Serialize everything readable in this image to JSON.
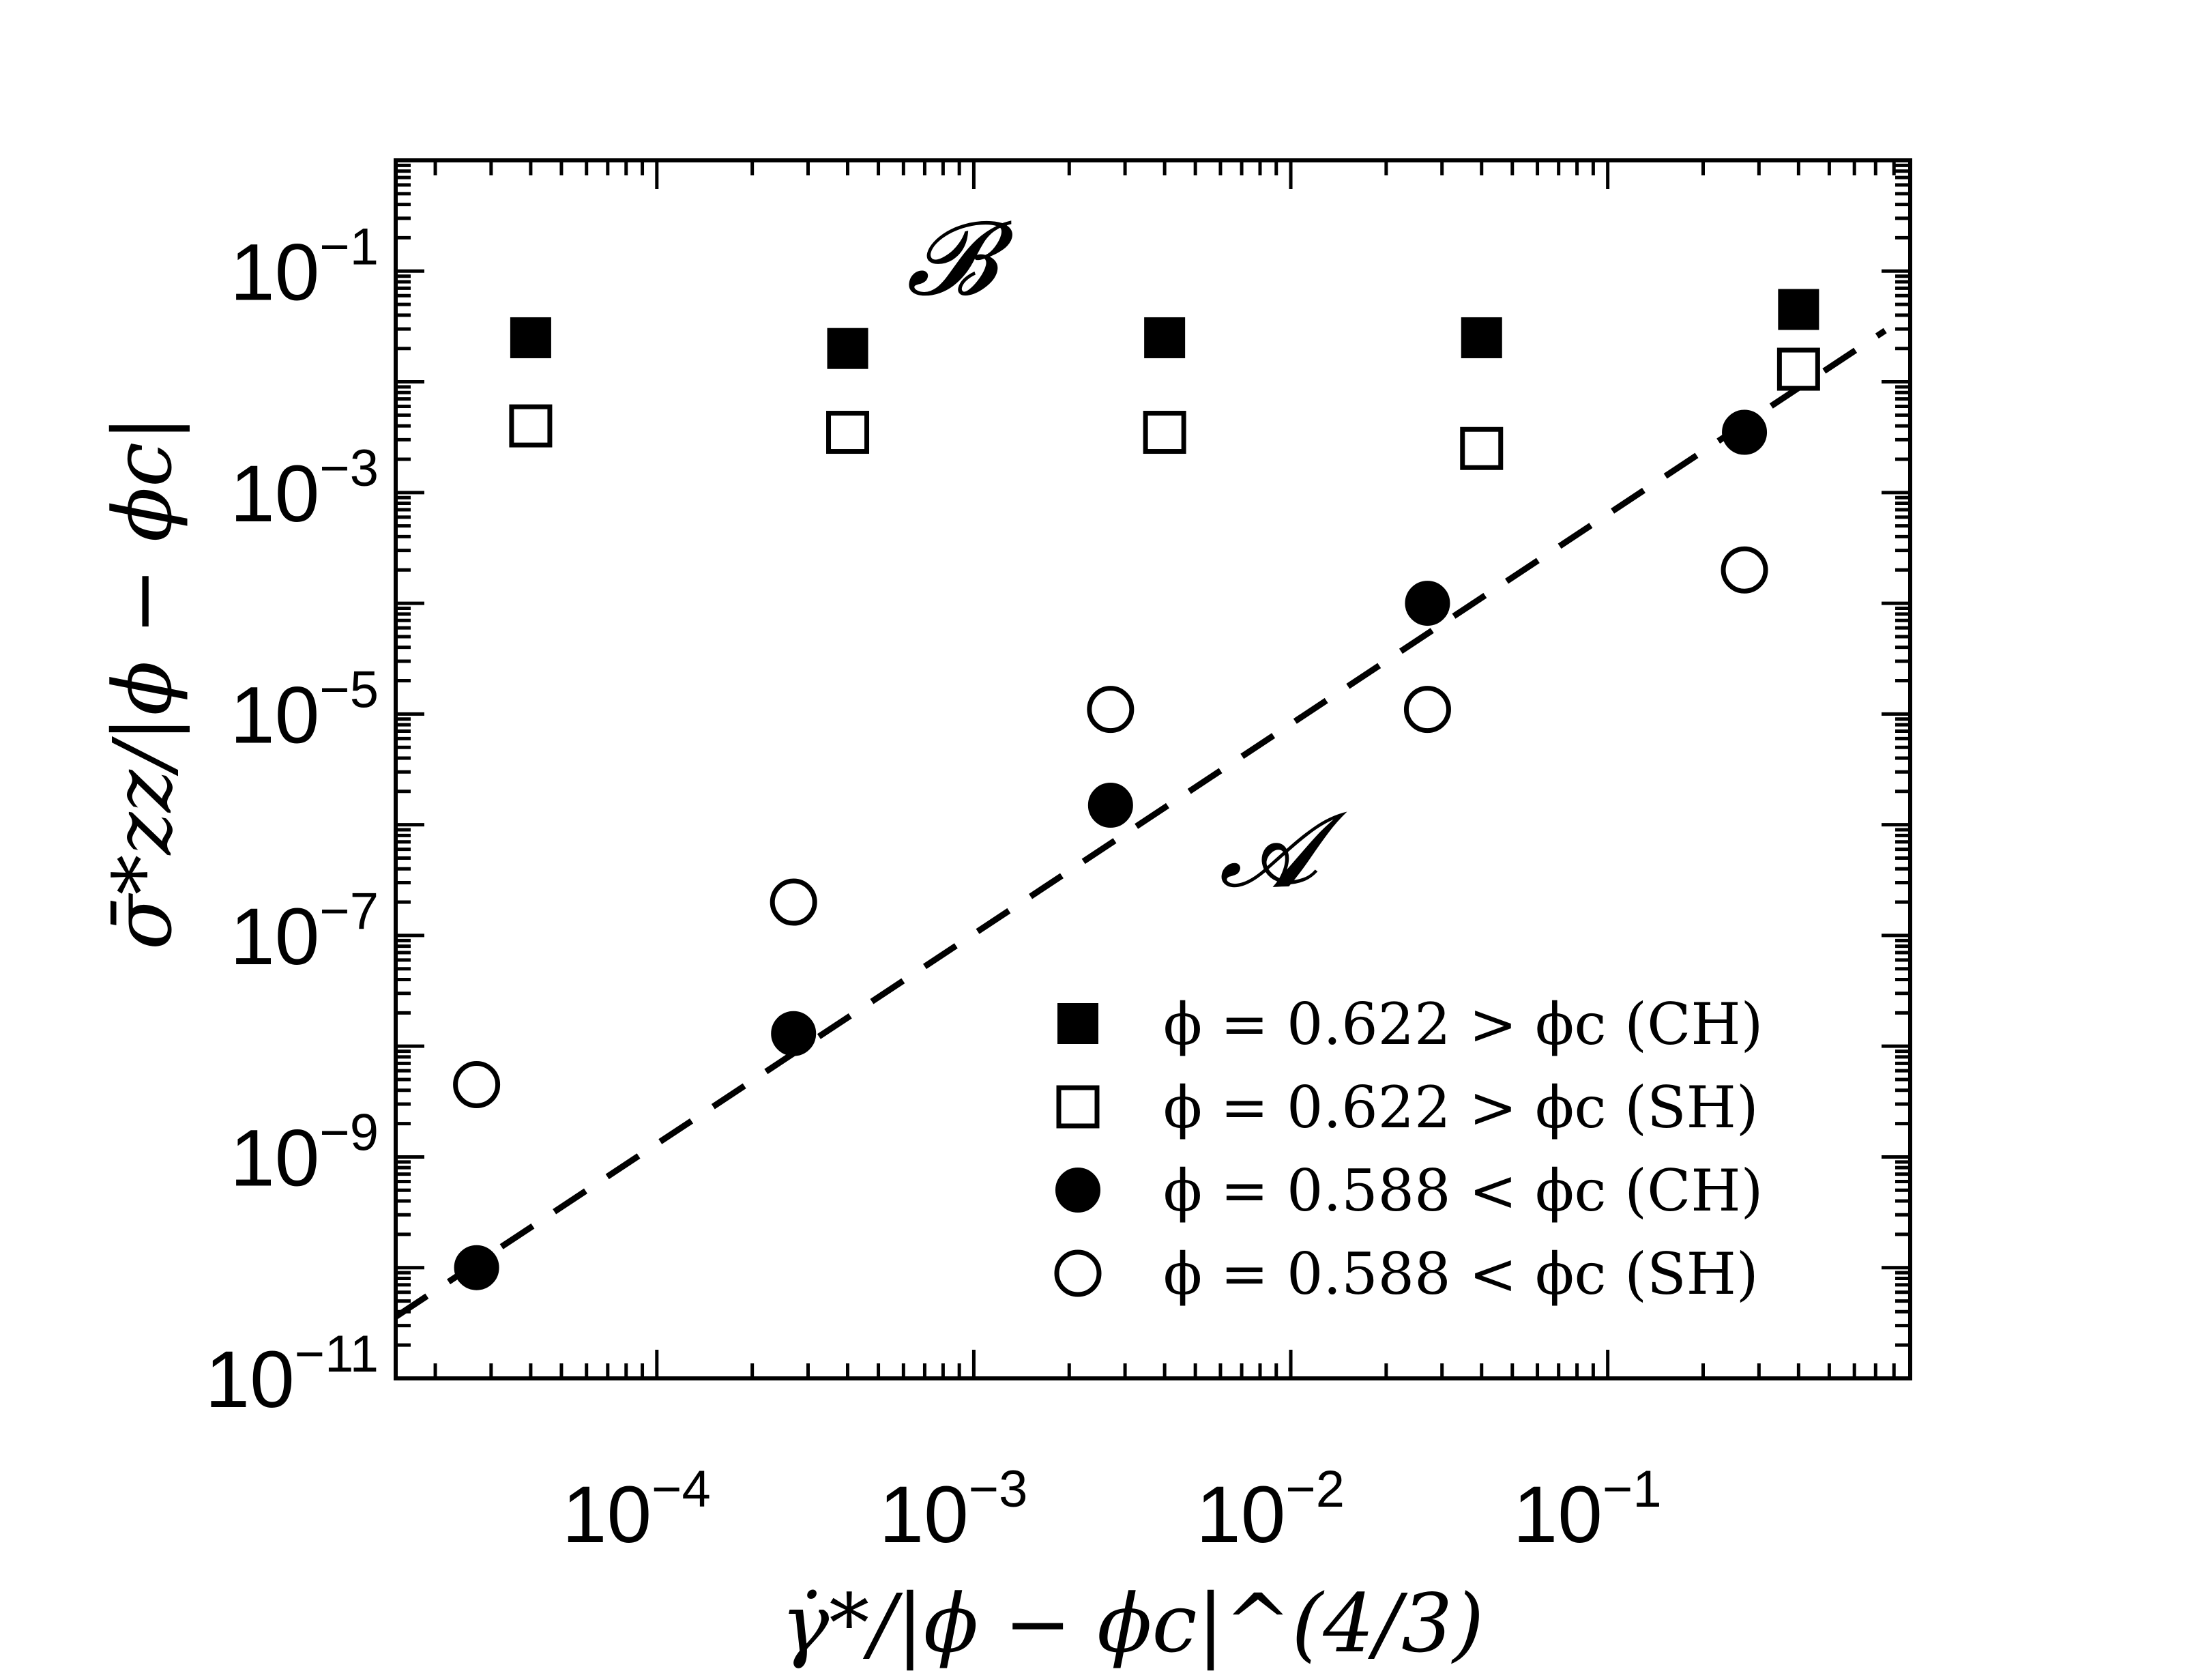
{
  "chart_data": {
    "type": "scatter",
    "x_scale": "log",
    "y_scale": "log",
    "xlim": [
      1.5e-05,
      0.9
    ],
    "ylim": [
      1e-11,
      1.0
    ],
    "xlabel": "γ̇*/|ϕ − ϕc|^(4/3)",
    "ylabel": "σ̄*zz/|ϕ − ϕc|",
    "x_ticks": [
      {
        "base": "10",
        "exp": "−4",
        "value": 0.0001
      },
      {
        "base": "10",
        "exp": "−3",
        "value": 0.001
      },
      {
        "base": "10",
        "exp": "−2",
        "value": 0.01
      },
      {
        "base": "10",
        "exp": "−1",
        "value": 0.1
      }
    ],
    "y_ticks": [
      {
        "base": "10",
        "exp": "−1",
        "value": 0.1
      },
      {
        "base": "10",
        "exp": "−3",
        "value": 0.001
      },
      {
        "base": "10",
        "exp": "−5",
        "value": 1e-05
      },
      {
        "base": "10",
        "exp": "−7",
        "value": 1e-07
      },
      {
        "base": "10",
        "exp": "−9",
        "value": 1e-09
      },
      {
        "base": "10",
        "exp": "−11",
        "value": 1e-11
      }
    ],
    "annotations": [
      {
        "text": "𝓑",
        "x": 0.00085,
        "y": 0.11
      },
      {
        "text": "𝓐",
        "x": 0.0085,
        "y": 5e-07
      }
    ],
    "legend_position": "bottom-right",
    "series": [
      {
        "name": "ϕ = 0.622 > ϕc (CH)",
        "marker": "square-filled",
        "x": [
          4e-05,
          0.0004,
          0.004,
          0.04,
          0.4
        ],
        "y": [
          0.025,
          0.02,
          0.025,
          0.025,
          0.045
        ]
      },
      {
        "name": "ϕ = 0.622 > ϕc (SH)",
        "marker": "square-open",
        "x": [
          4e-05,
          0.0004,
          0.004,
          0.04,
          0.4
        ],
        "y": [
          0.004,
          0.0035,
          0.0035,
          0.0025,
          0.013
        ]
      },
      {
        "name": "ϕ = 0.588 < ϕc (CH)",
        "marker": "circle-filled",
        "x": [
          2.7e-05,
          0.00027,
          0.0027,
          0.027,
          0.27
        ],
        "y": [
          1e-10,
          1.3e-08,
          1.5e-06,
          0.0001,
          0.0035
        ]
      },
      {
        "name": "ϕ = 0.588 < ϕc (SH)",
        "marker": "circle-open",
        "x": [
          2.7e-05,
          0.00027,
          0.0027,
          0.027,
          0.27
        ],
        "y": [
          4.5e-09,
          2e-07,
          1.1e-05,
          1.1e-05,
          0.0002
        ]
      }
    ],
    "fit_line": {
      "style": "dashed",
      "x": [
        1.5e-05,
        0.75
      ],
      "y": [
        3.6e-11,
        0.029
      ]
    }
  }
}
